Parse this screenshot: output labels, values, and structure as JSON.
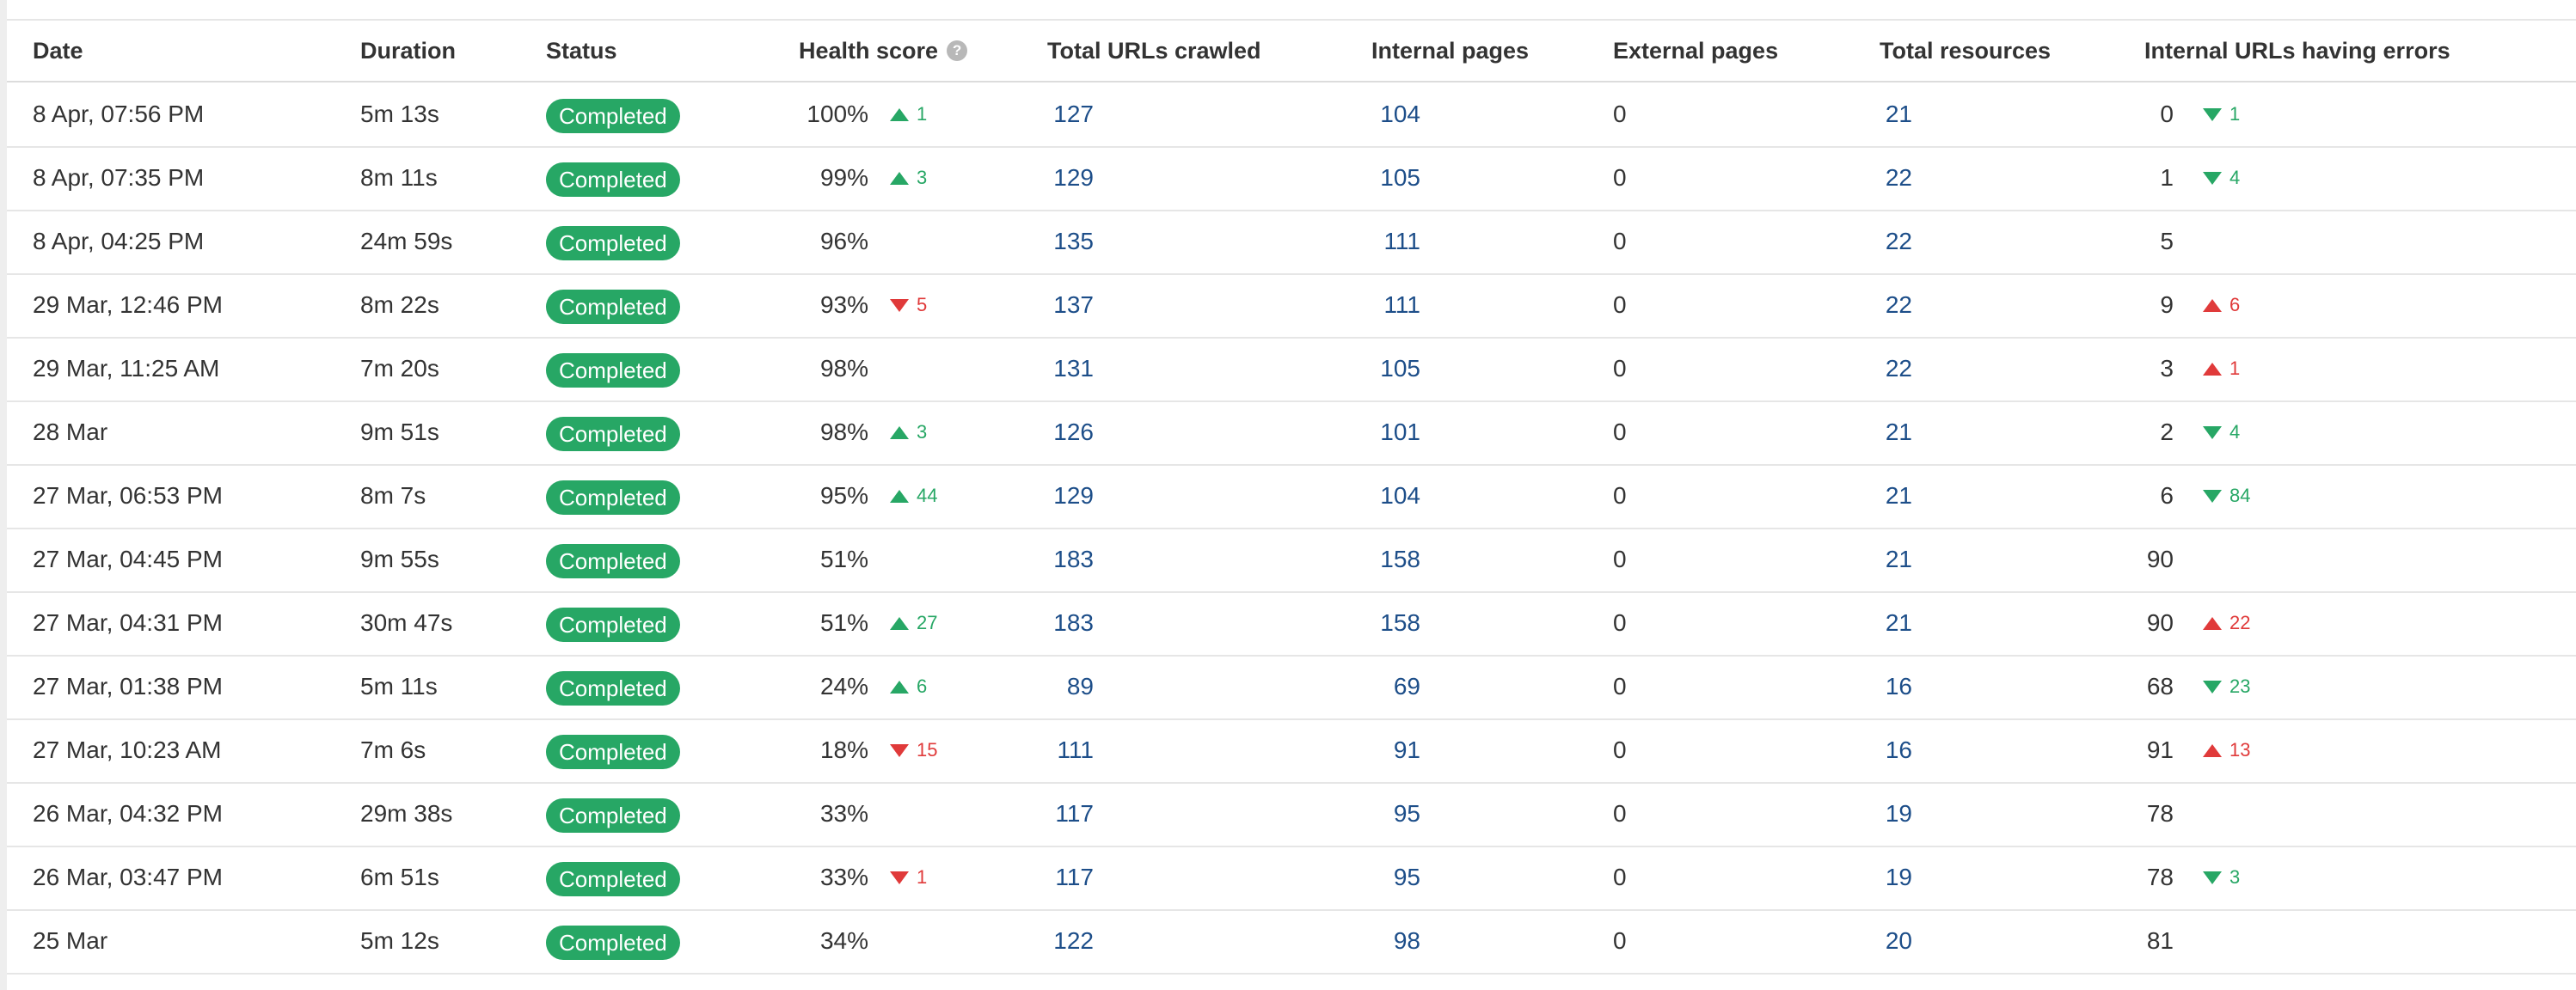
{
  "colors": {
    "badge": "#27a765",
    "link": "#1d4e89",
    "delta_good": "#27a765",
    "delta_bad": "#e03a3a"
  },
  "headers": {
    "date": "Date",
    "duration": "Duration",
    "status": "Status",
    "health_score": "Health score",
    "health_help_icon": "?",
    "total_urls": "Total URLs crawled",
    "internal_pages": "Internal pages",
    "external_pages": "External pages",
    "total_resources": "Total resources",
    "internal_errors": "Internal URLs having errors"
  },
  "rows": [
    {
      "date": "8 Apr, 07:56 PM",
      "duration": "5m 13s",
      "status": "Completed",
      "health": "100%",
      "health_delta": {
        "dir": "up",
        "kind": "good",
        "value": "1"
      },
      "total_urls": "127",
      "internal": "104",
      "external": "0",
      "resources": "21",
      "errors": "0",
      "errors_delta": {
        "dir": "down",
        "kind": "good",
        "value": "1"
      }
    },
    {
      "date": "8 Apr, 07:35 PM",
      "duration": "8m 11s",
      "status": "Completed",
      "health": "99%",
      "health_delta": {
        "dir": "up",
        "kind": "good",
        "value": "3"
      },
      "total_urls": "129",
      "internal": "105",
      "external": "0",
      "resources": "22",
      "errors": "1",
      "errors_delta": {
        "dir": "down",
        "kind": "good",
        "value": "4"
      }
    },
    {
      "date": "8 Apr, 04:25 PM",
      "duration": "24m 59s",
      "status": "Completed",
      "health": "96%",
      "health_delta": null,
      "total_urls": "135",
      "internal": "111",
      "external": "0",
      "resources": "22",
      "errors": "5",
      "errors_delta": null
    },
    {
      "date": "29 Mar, 12:46 PM",
      "duration": "8m 22s",
      "status": "Completed",
      "health": "93%",
      "health_delta": {
        "dir": "down",
        "kind": "bad",
        "value": "5"
      },
      "total_urls": "137",
      "internal": "111",
      "external": "0",
      "resources": "22",
      "errors": "9",
      "errors_delta": {
        "dir": "up",
        "kind": "bad",
        "value": "6"
      }
    },
    {
      "date": "29 Mar, 11:25 AM",
      "duration": "7m 20s",
      "status": "Completed",
      "health": "98%",
      "health_delta": null,
      "total_urls": "131",
      "internal": "105",
      "external": "0",
      "resources": "22",
      "errors": "3",
      "errors_delta": {
        "dir": "up",
        "kind": "bad",
        "value": "1"
      }
    },
    {
      "date": "28 Mar",
      "duration": "9m 51s",
      "status": "Completed",
      "health": "98%",
      "health_delta": {
        "dir": "up",
        "kind": "good",
        "value": "3"
      },
      "total_urls": "126",
      "internal": "101",
      "external": "0",
      "resources": "21",
      "errors": "2",
      "errors_delta": {
        "dir": "down",
        "kind": "good",
        "value": "4"
      }
    },
    {
      "date": "27 Mar, 06:53 PM",
      "duration": "8m 7s",
      "status": "Completed",
      "health": "95%",
      "health_delta": {
        "dir": "up",
        "kind": "good",
        "value": "44"
      },
      "total_urls": "129",
      "internal": "104",
      "external": "0",
      "resources": "21",
      "errors": "6",
      "errors_delta": {
        "dir": "down",
        "kind": "good",
        "value": "84"
      }
    },
    {
      "date": "27 Mar, 04:45 PM",
      "duration": "9m 55s",
      "status": "Completed",
      "health": "51%",
      "health_delta": null,
      "total_urls": "183",
      "internal": "158",
      "external": "0",
      "resources": "21",
      "errors": "90",
      "errors_delta": null
    },
    {
      "date": "27 Mar, 04:31 PM",
      "duration": "30m 47s",
      "status": "Completed",
      "health": "51%",
      "health_delta": {
        "dir": "up",
        "kind": "good",
        "value": "27"
      },
      "total_urls": "183",
      "internal": "158",
      "external": "0",
      "resources": "21",
      "errors": "90",
      "errors_delta": {
        "dir": "up",
        "kind": "bad",
        "value": "22"
      }
    },
    {
      "date": "27 Mar, 01:38 PM",
      "duration": "5m 11s",
      "status": "Completed",
      "health": "24%",
      "health_delta": {
        "dir": "up",
        "kind": "good",
        "value": "6"
      },
      "total_urls": "89",
      "internal": "69",
      "external": "0",
      "resources": "16",
      "errors": "68",
      "errors_delta": {
        "dir": "down",
        "kind": "good",
        "value": "23"
      }
    },
    {
      "date": "27 Mar, 10:23 AM",
      "duration": "7m 6s",
      "status": "Completed",
      "health": "18%",
      "health_delta": {
        "dir": "down",
        "kind": "bad",
        "value": "15"
      },
      "total_urls": "111",
      "internal": "91",
      "external": "0",
      "resources": "16",
      "errors": "91",
      "errors_delta": {
        "dir": "up",
        "kind": "bad",
        "value": "13"
      }
    },
    {
      "date": "26 Mar, 04:32 PM",
      "duration": "29m 38s",
      "status": "Completed",
      "health": "33%",
      "health_delta": null,
      "total_urls": "117",
      "internal": "95",
      "external": "0",
      "resources": "19",
      "errors": "78",
      "errors_delta": null
    },
    {
      "date": "26 Mar, 03:47 PM",
      "duration": "6m 51s",
      "status": "Completed",
      "health": "33%",
      "health_delta": {
        "dir": "down",
        "kind": "bad",
        "value": "1"
      },
      "total_urls": "117",
      "internal": "95",
      "external": "0",
      "resources": "19",
      "errors": "78",
      "errors_delta": {
        "dir": "down",
        "kind": "good",
        "value": "3"
      }
    },
    {
      "date": "25 Mar",
      "duration": "5m 12s",
      "status": "Completed",
      "health": "34%",
      "health_delta": null,
      "total_urls": "122",
      "internal": "98",
      "external": "0",
      "resources": "20",
      "errors": "81",
      "errors_delta": null
    }
  ]
}
